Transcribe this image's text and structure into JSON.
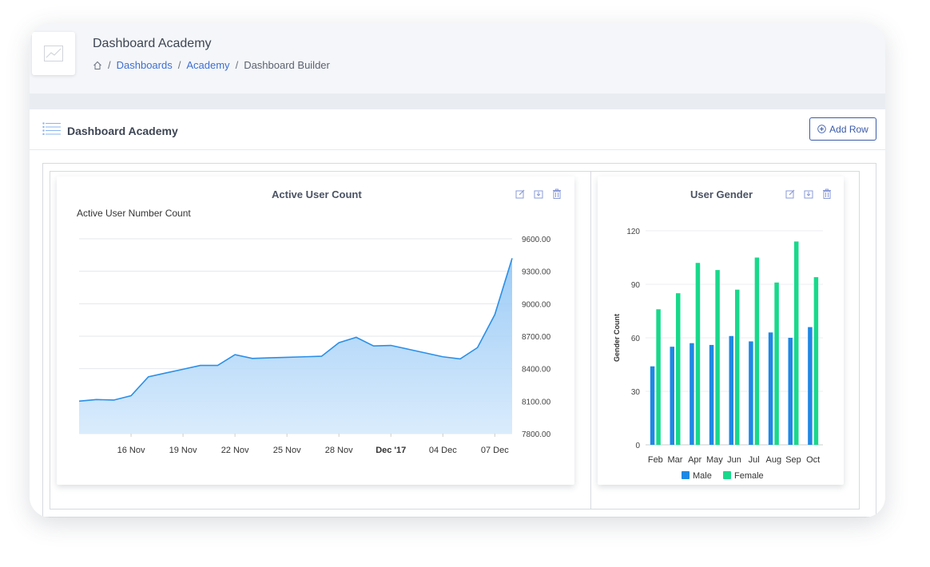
{
  "header": {
    "title": "Dashboard Academy",
    "breadcrumb": {
      "home_icon": "home-icon",
      "items": [
        "Dashboards",
        "Academy",
        "Dashboard Builder"
      ],
      "separator": "/"
    },
    "logo_icon": "line-chart-icon"
  },
  "panel": {
    "title": "Dashboard Academy",
    "title_icon": "list-icon",
    "add_row_label": "Add Row",
    "add_row_icon": "plus-circle-icon"
  },
  "colors": {
    "accent": "#3b5ba8",
    "link": "#3f6fd1",
    "line": "#2b8fe8",
    "male": "#1e88e5",
    "female": "#18d98b"
  },
  "cards": {
    "active_users": {
      "title": "Active User Count",
      "tools": [
        "edit-icon",
        "download-icon",
        "trash-icon"
      ]
    },
    "gender": {
      "title": "User Gender",
      "tools": [
        "edit-icon",
        "download-icon",
        "trash-icon"
      ]
    }
  },
  "chart_data": [
    {
      "type": "area",
      "title": "Active User Number Count",
      "y_axis_position": "right",
      "ylim": [
        7800,
        9600
      ],
      "y_ticks": [
        "9600.00",
        "9300.00",
        "9000.00",
        "8700.00",
        "8400.00",
        "8100.00",
        "7800.00"
      ],
      "x_ticks": [
        "16 Nov",
        "19 Nov",
        "22 Nov",
        "25 Nov",
        "28 Nov",
        "Dec '17",
        "04 Dec",
        "07 Dec"
      ],
      "x_tick_bold": "Dec '17",
      "grid": true,
      "x": [
        "13 Nov",
        "14 Nov",
        "15 Nov",
        "16 Nov",
        "17 Nov",
        "18 Nov",
        "19 Nov",
        "20 Nov",
        "21 Nov",
        "22 Nov",
        "23 Nov",
        "24 Nov",
        "25 Nov",
        "26 Nov",
        "27 Nov",
        "28 Nov",
        "29 Nov",
        "30 Nov",
        "01 Dec",
        "02 Dec",
        "03 Dec",
        "04 Dec",
        "05 Dec",
        "06 Dec",
        "07 Dec",
        "08 Dec"
      ],
      "values": [
        8100,
        8115,
        8110,
        8150,
        8325,
        8360,
        8395,
        8430,
        8430,
        8530,
        8495,
        8500,
        8505,
        8510,
        8515,
        8640,
        8690,
        8610,
        8615,
        8580,
        8545,
        8510,
        8490,
        8595,
        8900,
        9420
      ]
    },
    {
      "type": "bar",
      "title": "User Gender",
      "ylabel": "Gender Count",
      "ylim": [
        0,
        120
      ],
      "y_ticks": [
        0,
        30,
        60,
        90,
        120
      ],
      "categories": [
        "Feb",
        "Mar",
        "Apr",
        "May",
        "Jun",
        "Jul",
        "Aug",
        "Sep",
        "Oct"
      ],
      "series": [
        {
          "name": "Male",
          "color": "#1e88e5",
          "values": [
            44,
            55,
            57,
            56,
            61,
            58,
            63,
            60,
            66
          ]
        },
        {
          "name": "Female",
          "color": "#18d98b",
          "values": [
            76,
            85,
            102,
            98,
            87,
            105,
            91,
            114,
            94
          ]
        }
      ],
      "legend": "bottom",
      "grid": true
    }
  ]
}
